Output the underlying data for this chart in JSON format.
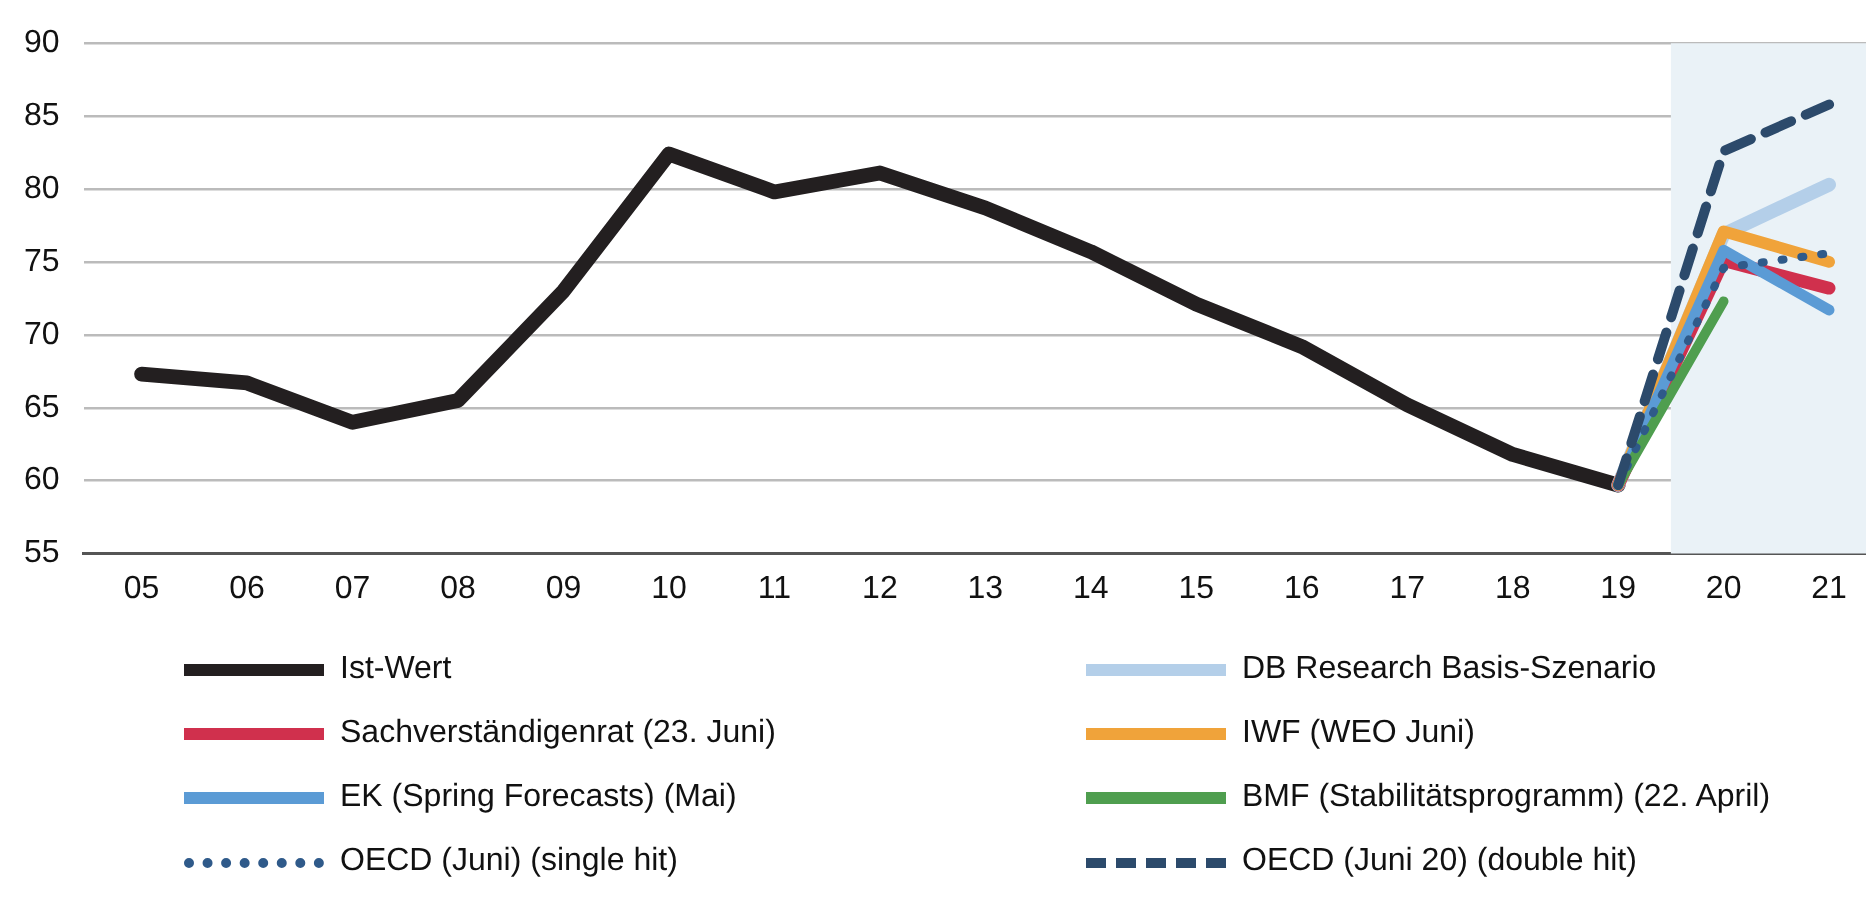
{
  "chart_data": {
    "type": "line",
    "x": [
      2005,
      2006,
      2007,
      2008,
      2009,
      2010,
      2011,
      2012,
      2013,
      2014,
      2015,
      2016,
      2017,
      2018,
      2019
    ],
    "xlim": [
      2004.45,
      2021.35
    ],
    "xticks": [
      {
        "value": 2005,
        "label": "05"
      },
      {
        "value": 2006,
        "label": "06"
      },
      {
        "value": 2007,
        "label": "07"
      },
      {
        "value": 2008,
        "label": "08"
      },
      {
        "value": 2009,
        "label": "09"
      },
      {
        "value": 2010,
        "label": "10"
      },
      {
        "value": 2011,
        "label": "11"
      },
      {
        "value": 2012,
        "label": "12"
      },
      {
        "value": 2013,
        "label": "13"
      },
      {
        "value": 2014,
        "label": "14"
      },
      {
        "value": 2015,
        "label": "15"
      },
      {
        "value": 2016,
        "label": "16"
      },
      {
        "value": 2017,
        "label": "17"
      },
      {
        "value": 2018,
        "label": "18"
      },
      {
        "value": 2019,
        "label": "19"
      },
      {
        "value": 2020,
        "label": "20"
      },
      {
        "value": 2021,
        "label": "21"
      }
    ],
    "ylim": [
      55,
      90
    ],
    "yticks": [
      55,
      60,
      65,
      70,
      75,
      80,
      85,
      90
    ],
    "grid": "y",
    "legend": "bottom",
    "marker": "none",
    "bands": [
      {
        "axis": "x",
        "from": 2019.5,
        "to": 2021.35,
        "color": "#eaf2f7"
      }
    ],
    "series": [
      {
        "name": "Ist-Wert",
        "color": "#231f20",
        "line_style": "solid",
        "values": [
          67.3,
          66.7,
          64.0,
          65.5,
          73.0,
          82.4,
          79.8,
          81.1,
          78.7,
          75.7,
          72.1,
          69.2,
          65.2,
          61.8,
          59.7
        ]
      },
      {
        "name": "DB Research Basis-Szenario",
        "color": "#b4cfe9",
        "line_style": "solid",
        "x": [
          2019,
          2020,
          2021
        ],
        "values": [
          59.7,
          76.9,
          80.3
        ]
      },
      {
        "name": "Sachverständigenrat (23. Juni)",
        "color": "#d0304d",
        "line_style": "solid",
        "x": [
          2019,
          2020,
          2021
        ],
        "values": [
          59.7,
          75.1,
          73.2
        ]
      },
      {
        "name": "IWF (WEO Juni)",
        "color": "#f0a33a",
        "line_style": "solid",
        "x": [
          2019,
          2020,
          2021
        ],
        "values": [
          59.7,
          77.1,
          75.0
        ]
      },
      {
        "name": "EK (Spring Forecasts) (Mai)",
        "color": "#5b9bd5",
        "line_style": "solid",
        "x": [
          2019,
          2020,
          2021
        ],
        "values": [
          59.7,
          75.8,
          71.7
        ]
      },
      {
        "name": "BMF (Stabilitätsprogramm) (22. April)",
        "color": "#4f9e4f",
        "line_style": "solid",
        "x": [
          2019,
          2020
        ],
        "values": [
          59.7,
          72.3
        ]
      },
      {
        "name": "OECD (Juni) (single hit)",
        "color": "#2f5a8a",
        "line_style": "dotted",
        "x": [
          2019,
          2020,
          2021
        ],
        "values": [
          59.7,
          74.6,
          75.6
        ]
      },
      {
        "name": "OECD (Juni 20) (double hit)",
        "color": "#2c4a6b",
        "line_style": "dashed",
        "x": [
          2019,
          2020,
          2021
        ],
        "values": [
          59.7,
          82.6,
          85.8
        ]
      }
    ]
  }
}
